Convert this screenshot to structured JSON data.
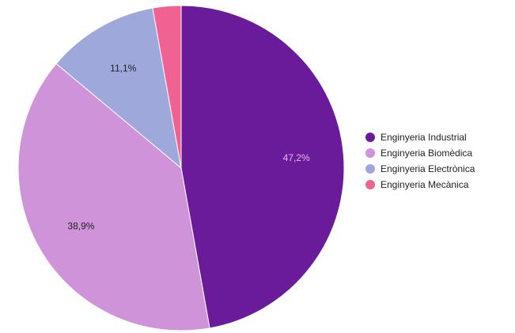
{
  "chart_data": {
    "type": "pie",
    "categories": [
      "Enginyeria Industrial",
      "Enginyeria Biomèdica",
      "Enginyeria Electrònica",
      "Enginyeria Mecànica"
    ],
    "values": [
      47.2,
      38.9,
      11.1,
      2.8
    ],
    "data_labels": [
      "47,2%",
      "38,9%",
      "11,1%",
      ""
    ],
    "colors": [
      "#6a1b9a",
      "#ce93d8",
      "#9fa8da",
      "#f06292"
    ],
    "label_colors": [
      "#e1bee7",
      "#222222",
      "#222222",
      "#222222"
    ],
    "legend_position": "right",
    "start_angle_deg": 0,
    "direction": "clockwise"
  }
}
